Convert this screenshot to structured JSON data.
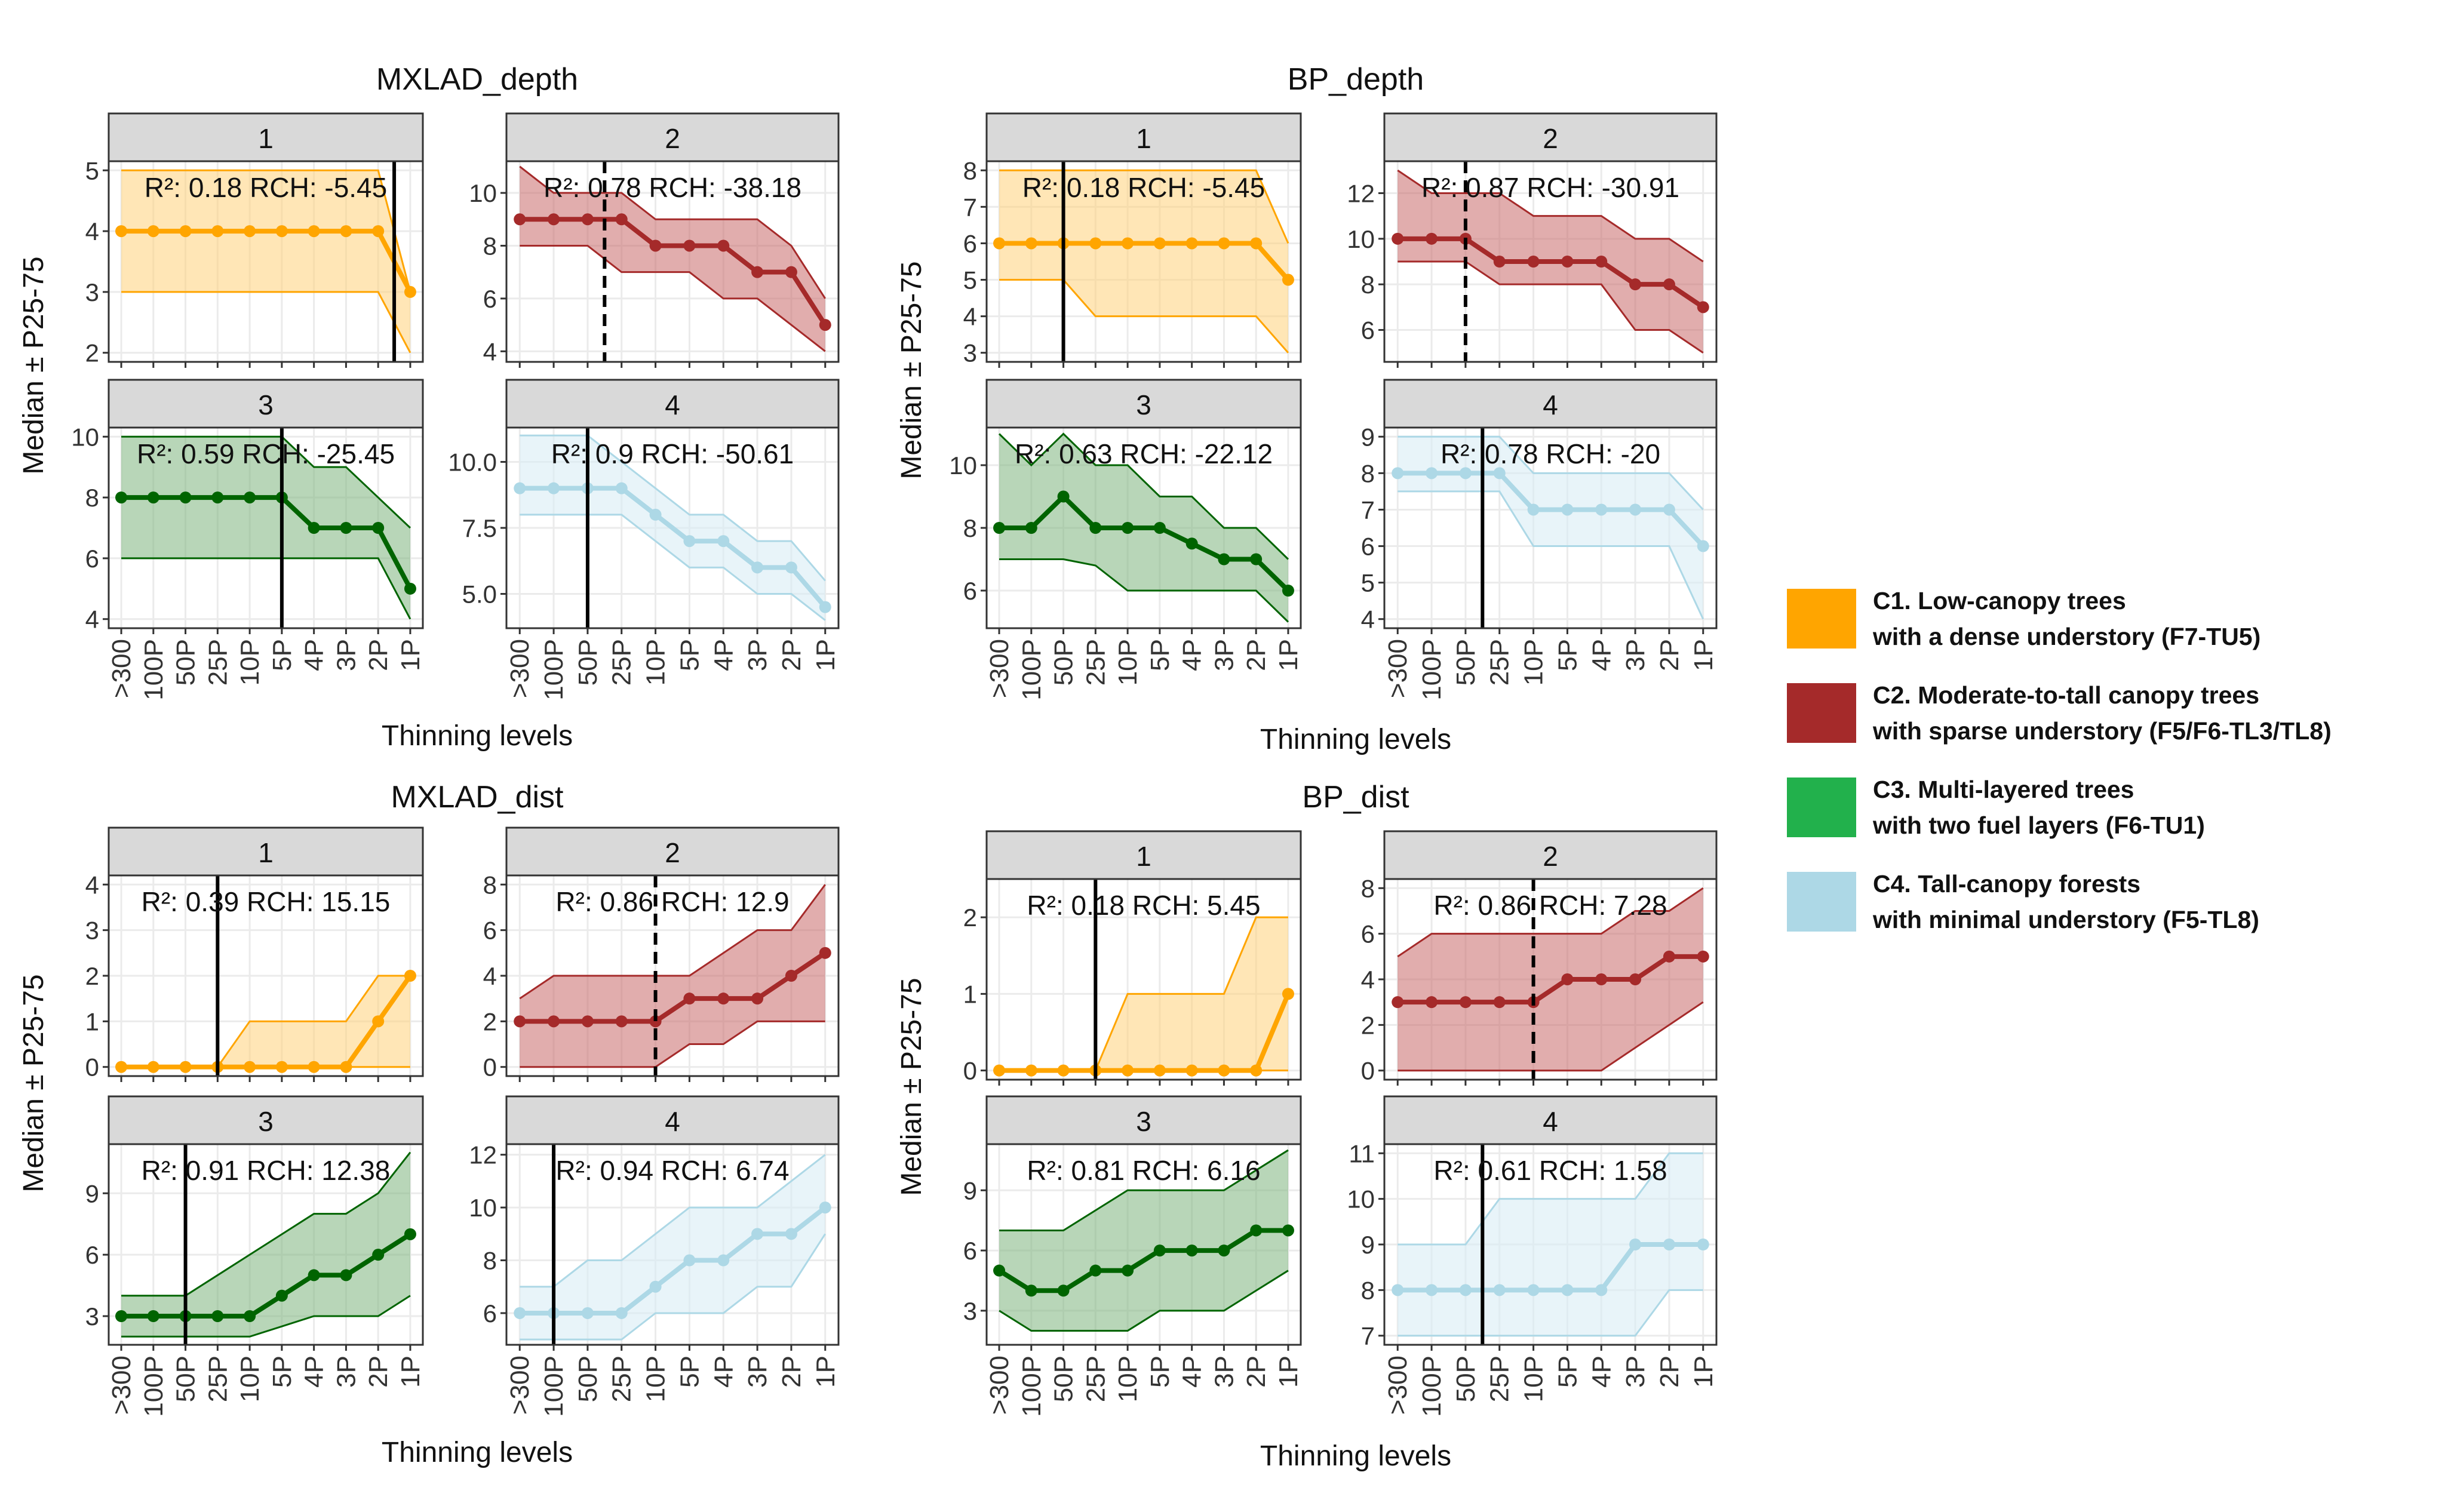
{
  "chart_data": {
    "type": "line",
    "x_categories": [
      ">300",
      "100P",
      "50P",
      "25P",
      "10P",
      "5P",
      "4P",
      "3P",
      "2P",
      "1P"
    ],
    "axes_labels": {
      "x": "Thinning levels",
      "y": "Median ± P25-75"
    },
    "colors": {
      "1": "#FFA500",
      "2": "#A52A2A",
      "3": "#1E6F1E",
      "4": "#ADD8E6"
    },
    "fill_colors": {
      "1": "#FFD27A",
      "2": "#C96A6A",
      "3": "#7DB57D",
      "4": "#D9ECF5"
    },
    "line_colors": {
      "1": "#FFA500",
      "2": "#A52A2A",
      "3": "#006400",
      "4": "#ADD8E6"
    },
    "legend": [
      {
        "key": "1",
        "color": "#FFA500",
        "line1": "C1. Low-canopy trees",
        "line2": "with a dense understory (F7-TU5)"
      },
      {
        "key": "2",
        "color": "#A52A2A",
        "line1": "C2. Moderate-to-tall canopy trees",
        "line2": "with sparse understory (F5/F6-TL3/TL8)"
      },
      {
        "key": "3",
        "color": "#22B14C",
        "line1": "C3. Multi-layered trees",
        "line2": "with two fuel layers (F6-TU1)"
      },
      {
        "key": "4",
        "color": "#ADD8E6",
        "line1": "C4. Tall-canopy forests",
        "line2": "with minimal understory (F5-TL8)"
      }
    ],
    "groups": [
      {
        "title": "MXLAD_depth",
        "panels": [
          {
            "strip": "1",
            "ylim": [
              1.85,
              5.15
            ],
            "yticks": [
              2,
              3,
              4,
              5
            ],
            "annotation": "R²: 0.18 RCH: -5.45",
            "vline": 8.5,
            "vline_style": "solid",
            "median": [
              4,
              4,
              4,
              4,
              4,
              4,
              4,
              4,
              4,
              3
            ],
            "p25": [
              3,
              3,
              3,
              3,
              3,
              3,
              3,
              3,
              3,
              2
            ],
            "p75": [
              5,
              5,
              5,
              5,
              5,
              5,
              5,
              5,
              5,
              3
            ]
          },
          {
            "strip": "2",
            "ylim": [
              3.6,
              11.2
            ],
            "yticks": [
              4,
              6,
              8,
              10
            ],
            "annotation": "R²: 0.78 RCH: -38.18",
            "vline": 2.5,
            "vline_style": "dashed",
            "median": [
              9,
              9,
              9,
              9,
              8,
              8,
              8,
              7,
              7,
              5
            ],
            "p25": [
              8,
              8,
              8,
              7,
              7,
              7,
              6,
              6,
              5,
              4
            ],
            "p75": [
              11,
              10,
              10,
              10,
              9,
              9,
              9,
              9,
              8,
              6
            ]
          },
          {
            "strip": "3",
            "ylim": [
              3.7,
              10.3
            ],
            "yticks": [
              4,
              6,
              8,
              10
            ],
            "annotation": "R²: 0.59 RCH: -25.45",
            "vline": 5,
            "vline_style": "solid",
            "median": [
              8,
              8,
              8,
              8,
              8,
              8,
              7,
              7,
              7,
              5
            ],
            "p25": [
              6,
              6,
              6,
              6,
              6,
              6,
              6,
              6,
              6,
              4
            ],
            "p75": [
              10,
              10,
              10,
              10,
              10,
              10,
              9,
              9,
              8,
              7
            ]
          },
          {
            "strip": "4",
            "ylim": [
              3.7,
              11.3
            ],
            "yticks": [
              5,
              7.5,
              10
            ],
            "ytick_labels": [
              "5.0",
              "7.5",
              "10.0"
            ],
            "annotation": "R²: 0.9 RCH: -50.61",
            "vline": 2,
            "vline_style": "solid",
            "median": [
              9,
              9,
              9,
              9,
              8,
              7,
              7,
              6,
              6,
              4.5
            ],
            "p25": [
              8,
              8,
              8,
              8,
              7,
              6,
              6,
              5,
              5,
              4
            ],
            "p75": [
              11,
              11,
              11,
              10,
              9,
              8,
              8,
              7,
              7,
              5.5
            ]
          }
        ]
      },
      {
        "title": "BP_depth",
        "panels": [
          {
            "strip": "1",
            "ylim": [
              2.75,
              8.25
            ],
            "yticks": [
              3,
              4,
              5,
              6,
              7,
              8
            ],
            "annotation": "R²: 0.18 RCH: -5.45",
            "vline": 2,
            "vline_style": "solid",
            "median": [
              6,
              6,
              6,
              6,
              6,
              6,
              6,
              6,
              6,
              5
            ],
            "p25": [
              5,
              5,
              5,
              4,
              4,
              4,
              4,
              4,
              4,
              3
            ],
            "p75": [
              8,
              8,
              8,
              8,
              8,
              8,
              8,
              8,
              8,
              6
            ]
          },
          {
            "strip": "2",
            "ylim": [
              4.6,
              13.4
            ],
            "yticks": [
              6,
              8,
              10,
              12
            ],
            "annotation": "R²: 0.87 RCH: -30.91",
            "vline": 2,
            "vline_style": "dashed",
            "median": [
              10,
              10,
              10,
              9,
              9,
              9,
              9,
              8,
              8,
              7
            ],
            "p25": [
              9,
              9,
              9,
              8,
              8,
              8,
              8,
              6,
              6,
              5
            ],
            "p75": [
              13,
              12,
              12,
              12,
              11,
              11,
              11,
              10,
              10,
              9
            ]
          },
          {
            "strip": "3",
            "ylim": [
              4.8,
              11.2
            ],
            "yticks": [
              6,
              8,
              10
            ],
            "annotation": "R²: 0.63 RCH: -22.12",
            "vline": null,
            "vline_style": "none",
            "median": [
              8,
              8,
              9,
              8,
              8,
              8,
              7.5,
              7,
              7,
              6
            ],
            "p25": [
              7,
              7,
              7,
              6.8,
              6,
              6,
              6,
              6,
              6,
              5
            ],
            "p75": [
              11,
              10,
              11,
              10,
              10,
              9,
              9,
              8,
              8,
              7
            ]
          },
          {
            "strip": "4",
            "ylim": [
              3.75,
              9.25
            ],
            "yticks": [
              4,
              5,
              6,
              7,
              8,
              9
            ],
            "annotation": "R²: 0.78 RCH: -20",
            "vline": 2.5,
            "vline_style": "solid",
            "median": [
              8,
              8,
              8,
              8,
              7,
              7,
              7,
              7,
              7,
              6
            ],
            "p25": [
              7.5,
              7.5,
              7.5,
              7.5,
              6,
              6,
              6,
              6,
              6,
              4
            ],
            "p75": [
              9,
              9,
              9,
              9,
              8,
              8,
              8,
              8,
              8,
              7
            ]
          }
        ]
      },
      {
        "title": "MXLAD_dist",
        "panels": [
          {
            "strip": "1",
            "ylim": [
              -0.2,
              4.2
            ],
            "yticks": [
              0,
              1,
              2,
              3,
              4
            ],
            "annotation": "R²: 0.39 RCH: 15.15",
            "vline": 3,
            "vline_style": "solid",
            "median": [
              0,
              0,
              0,
              0,
              0,
              0,
              0,
              0,
              1,
              2
            ],
            "p25": [
              0,
              0,
              0,
              0,
              0,
              0,
              0,
              0,
              0,
              0
            ],
            "p75": [
              0,
              0,
              0,
              0,
              1,
              1,
              1,
              1,
              2,
              2
            ]
          },
          {
            "strip": "2",
            "ylim": [
              -0.4,
              8.4
            ],
            "yticks": [
              0,
              2,
              4,
              6,
              8
            ],
            "annotation": "R²: 0.86 RCH: 12.9",
            "vline": 4,
            "vline_style": "dashed",
            "median": [
              2,
              2,
              2,
              2,
              2,
              3,
              3,
              3,
              4,
              5
            ],
            "p25": [
              0,
              0,
              0,
              0,
              0,
              1,
              1,
              2,
              2,
              2
            ],
            "p75": [
              3,
              4,
              4,
              4,
              4,
              4,
              5,
              6,
              6,
              8
            ]
          },
          {
            "strip": "3",
            "ylim": [
              1.6,
              11.4
            ],
            "yticks": [
              3,
              6,
              9
            ],
            "annotation": "R²: 0.91 RCH: 12.38",
            "vline": 2,
            "vline_style": "solid",
            "median": [
              3,
              3,
              3,
              3,
              3,
              4,
              5,
              5,
              6,
              7
            ],
            "p25": [
              2,
              2,
              2,
              2,
              2,
              2.5,
              3,
              3,
              3,
              4
            ],
            "p75": [
              4,
              4,
              4,
              5,
              6,
              7,
              8,
              8,
              9,
              11
            ]
          },
          {
            "strip": "4",
            "ylim": [
              4.8,
              12.4
            ],
            "yticks": [
              6,
              8,
              10,
              12
            ],
            "annotation": "R²: 0.94 RCH: 6.74",
            "vline": 1,
            "vline_style": "solid",
            "median": [
              6,
              6,
              6,
              6,
              7,
              8,
              8,
              9,
              9,
              10
            ],
            "p25": [
              5,
              5,
              5,
              5,
              6,
              6,
              6,
              7,
              7,
              9
            ],
            "p75": [
              7,
              7,
              8,
              8,
              9,
              10,
              10,
              10,
              11,
              12
            ]
          }
        ]
      },
      {
        "title": "BP_dist",
        "panels": [
          {
            "strip": "1",
            "ylim": [
              -0.12,
              2.5
            ],
            "yticks": [
              0,
              1,
              2
            ],
            "annotation": "R²: 0.18 RCH: 5.45",
            "vline": 3,
            "vline_style": "solid",
            "median": [
              0,
              0,
              0,
              0,
              0,
              0,
              0,
              0,
              0,
              1
            ],
            "p25": [
              0,
              0,
              0,
              0,
              0,
              0,
              0,
              0,
              0,
              0
            ],
            "p75": [
              0,
              0,
              0,
              0,
              1,
              1,
              1,
              1,
              2,
              2
            ]
          },
          {
            "strip": "2",
            "ylim": [
              -0.4,
              8.4
            ],
            "yticks": [
              0,
              2,
              4,
              6,
              8
            ],
            "annotation": "R²: 0.86 RCH: 7.28",
            "vline": 4,
            "vline_style": "dashed",
            "median": [
              3,
              3,
              3,
              3,
              3,
              4,
              4,
              4,
              5,
              5
            ],
            "p25": [
              0,
              0,
              0,
              0,
              0,
              0,
              0,
              1,
              2,
              3
            ],
            "p75": [
              5,
              6,
              6,
              6,
              6,
              6,
              6,
              7,
              7,
              8
            ]
          },
          {
            "strip": "3",
            "ylim": [
              1.3,
              11.3
            ],
            "yticks": [
              3,
              6,
              9
            ],
            "annotation": "R²: 0.81 RCH: 6.16",
            "vline": null,
            "vline_style": "none",
            "median": [
              5,
              4,
              4,
              5,
              5,
              6,
              6,
              6,
              7,
              7
            ],
            "p25": [
              3,
              2,
              2,
              2,
              2,
              3,
              3,
              3,
              4,
              5
            ],
            "p75": [
              7,
              7,
              7,
              8,
              9,
              9,
              9,
              9,
              10,
              11
            ]
          },
          {
            "strip": "4",
            "ylim": [
              6.8,
              11.2
            ],
            "yticks": [
              7,
              8,
              9,
              10,
              11
            ],
            "annotation": "R²: 0.61 RCH: 1.58",
            "vline": 2.5,
            "vline_style": "solid",
            "median": [
              8,
              8,
              8,
              8,
              8,
              8,
              8,
              9,
              9,
              9
            ],
            "p25": [
              7,
              7,
              7,
              7,
              7,
              7,
              7,
              7,
              8,
              8
            ],
            "p75": [
              9,
              9,
              9,
              10,
              10,
              10,
              10,
              10,
              11,
              11
            ]
          }
        ]
      }
    ]
  }
}
